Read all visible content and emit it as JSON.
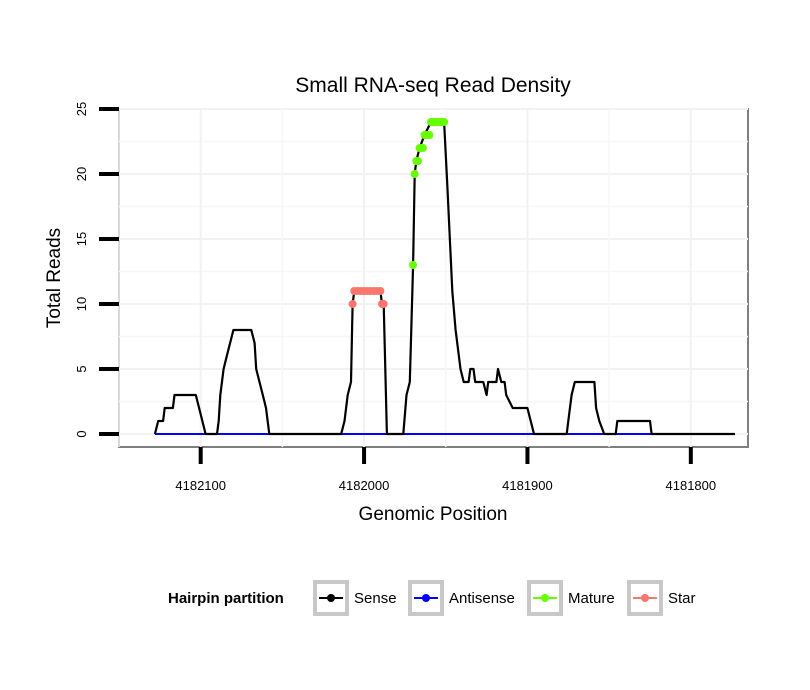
{
  "chart_data": {
    "type": "line",
    "title": "Small RNA-seq Read Density",
    "xlabel": "Genomic Position",
    "ylabel": "Total Reads",
    "x_reversed": true,
    "xlim": [
      4182150,
      4181765
    ],
    "ylim": [
      -1,
      25
    ],
    "x_ticks": [
      4182100,
      4182000,
      4181900,
      4181800
    ],
    "y_ticks": [
      0,
      5,
      10,
      15,
      20,
      25
    ],
    "grid": true,
    "legend": {
      "title": "Hairpin partition",
      "position": "bottom",
      "entries": [
        "Sense",
        "Antisense",
        "Mature",
        "Star"
      ]
    },
    "colors": {
      "Sense": "#000000",
      "Antisense": "#0000ff",
      "Mature": "#66ff00",
      "Star": "#f8766d"
    },
    "series": [
      {
        "name": "Sense",
        "style": "line",
        "points": [
          [
            4182128,
            0
          ],
          [
            4182126,
            1
          ],
          [
            4182123,
            1
          ],
          [
            4182122,
            2
          ],
          [
            4182117,
            2
          ],
          [
            4182116,
            3
          ],
          [
            4182103,
            3
          ],
          [
            4182101,
            2
          ],
          [
            4182097,
            0
          ],
          [
            4182090,
            0
          ],
          [
            4182089,
            1
          ],
          [
            4182088,
            3
          ],
          [
            4182086,
            5
          ],
          [
            4182084,
            6
          ],
          [
            4182082,
            7
          ],
          [
            4182080,
            8
          ],
          [
            4182069,
            8
          ],
          [
            4182067,
            7
          ],
          [
            4182066,
            5
          ],
          [
            4182064,
            4
          ],
          [
            4182062,
            3
          ],
          [
            4182060,
            2
          ],
          [
            4182058,
            0
          ],
          [
            4182014,
            0
          ],
          [
            4182012,
            1
          ],
          [
            4182010,
            3
          ],
          [
            4182008,
            4
          ],
          [
            4182007,
            10
          ],
          [
            4182006,
            11
          ],
          [
            4181990,
            11
          ],
          [
            4181989,
            10
          ],
          [
            4181988,
            10
          ],
          [
            4181986,
            0
          ],
          [
            4181976,
            0
          ],
          [
            4181974,
            3
          ],
          [
            4181972,
            4
          ],
          [
            4181970,
            13
          ],
          [
            4181969,
            20
          ],
          [
            4181968,
            21
          ],
          [
            4181966,
            22
          ],
          [
            4181963,
            23
          ],
          [
            4181959,
            24
          ],
          [
            4181951,
            24
          ],
          [
            4181949,
            19
          ],
          [
            4181946,
            11
          ],
          [
            4181944,
            8
          ],
          [
            4181941,
            5
          ],
          [
            4181939,
            4
          ],
          [
            4181936,
            4
          ],
          [
            4181935,
            5
          ],
          [
            4181933,
            5
          ],
          [
            4181932,
            4
          ],
          [
            4181927,
            4
          ],
          [
            4181925,
            3
          ],
          [
            4181924,
            4
          ],
          [
            4181919,
            4
          ],
          [
            4181918,
            5
          ],
          [
            4181916,
            4
          ],
          [
            4181914,
            4
          ],
          [
            4181913,
            3
          ],
          [
            4181909,
            2
          ],
          [
            4181900,
            2
          ],
          [
            4181898,
            1
          ],
          [
            4181896,
            0
          ],
          [
            4181876,
            0
          ],
          [
            4181875,
            1
          ],
          [
            4181873,
            3
          ],
          [
            4181871,
            4
          ],
          [
            4181859,
            4
          ],
          [
            4181858,
            2
          ],
          [
            4181856,
            1
          ],
          [
            4181853,
            0
          ],
          [
            4181846,
            0
          ],
          [
            4181845,
            1
          ],
          [
            4181825,
            1
          ],
          [
            4181824,
            0
          ],
          [
            4181773,
            0
          ]
        ]
      },
      {
        "name": "Antisense",
        "style": "line",
        "points": [
          [
            4182128,
            0
          ],
          [
            4181773,
            0
          ]
        ]
      },
      {
        "name": "Star",
        "style": "points",
        "points": [
          [
            4182007,
            10
          ],
          [
            4182006,
            11
          ],
          [
            4182004,
            11
          ],
          [
            4182002,
            11
          ],
          [
            4182000,
            11
          ],
          [
            4181998,
            11
          ],
          [
            4181996,
            11
          ],
          [
            4181994,
            11
          ],
          [
            4181992,
            11
          ],
          [
            4181990,
            11
          ],
          [
            4181989,
            10
          ],
          [
            4181988,
            10
          ]
        ]
      },
      {
        "name": "Mature",
        "style": "points",
        "points": [
          [
            4181970,
            13
          ],
          [
            4181969,
            20
          ],
          [
            4181968,
            21
          ],
          [
            4181967,
            21
          ],
          [
            4181966,
            22
          ],
          [
            4181965,
            22
          ],
          [
            4181964,
            22
          ],
          [
            4181963,
            23
          ],
          [
            4181962,
            23
          ],
          [
            4181961,
            23
          ],
          [
            4181960,
            23
          ],
          [
            4181959,
            24
          ],
          [
            4181958,
            24
          ],
          [
            4181957,
            24
          ],
          [
            4181956,
            24
          ],
          [
            4181955,
            24
          ],
          [
            4181954,
            24
          ],
          [
            4181953,
            24
          ],
          [
            4181952,
            24
          ],
          [
            4181951,
            24
          ]
        ]
      }
    ]
  }
}
